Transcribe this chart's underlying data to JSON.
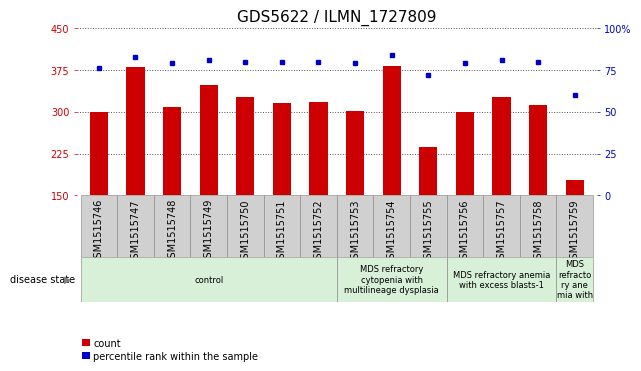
{
  "title": "GDS5622 / ILMN_1727809",
  "categories": [
    "GSM1515746",
    "GSM1515747",
    "GSM1515748",
    "GSM1515749",
    "GSM1515750",
    "GSM1515751",
    "GSM1515752",
    "GSM1515753",
    "GSM1515754",
    "GSM1515755",
    "GSM1515756",
    "GSM1515757",
    "GSM1515758",
    "GSM1515759"
  ],
  "counts": [
    300,
    380,
    308,
    348,
    327,
    316,
    317,
    302,
    382,
    237,
    300,
    326,
    312,
    178
  ],
  "percentiles": [
    76,
    83,
    79,
    81,
    80,
    80,
    80,
    79,
    84,
    72,
    79,
    81,
    80,
    60
  ],
  "ylim_left": [
    150,
    450
  ],
  "ylim_right": [
    0,
    100
  ],
  "yticks_left": [
    150,
    225,
    300,
    375,
    450
  ],
  "yticks_right": [
    0,
    25,
    50,
    75,
    100
  ],
  "bar_color": "#cc0000",
  "dot_color": "#0000cc",
  "bar_width": 0.5,
  "disease_states": [
    {
      "label": "control",
      "start": 0,
      "end": 7,
      "color": "#d8f0d8"
    },
    {
      "label": "MDS refractory\ncytopenia with\nmultilineage dysplasia",
      "start": 7,
      "end": 10,
      "color": "#d8f0d8"
    },
    {
      "label": "MDS refractory anemia\nwith excess blasts-1",
      "start": 10,
      "end": 13,
      "color": "#d8f0d8"
    },
    {
      "label": "MDS\nrefracto\nry ane\nmia with",
      "start": 13,
      "end": 14,
      "color": "#d8f0d8"
    }
  ],
  "disease_state_label": "disease state",
  "legend_count_label": "count",
  "legend_pct_label": "percentile rank within the sample",
  "grid_color": "#555555",
  "bg_color": "#ffffff",
  "plot_bg_color": "#ffffff",
  "tick_label_color_left": "#cc0000",
  "tick_label_color_right": "#0000cc",
  "xtick_bg_color": "#d0d0d0",
  "title_fontsize": 11,
  "tick_fontsize": 7,
  "label_fontsize": 7
}
